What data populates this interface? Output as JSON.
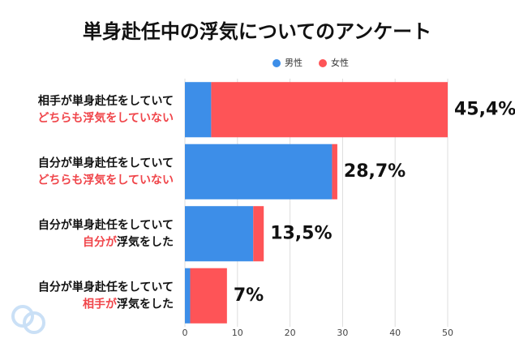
{
  "chart_data": {
    "type": "stacked-barh",
    "title": "単身赴任中の浮気についてのアンケート",
    "categories": [
      [
        [
          {
            "text": "相手が単身赴任をしていて",
            "color": "#111111"
          }
        ],
        [
          {
            "text": "どちらも浮気をしていない",
            "color": "#f0454a"
          }
        ]
      ],
      [
        [
          {
            "text": "自分が単身赴任をしていて",
            "color": "#111111"
          }
        ],
        [
          {
            "text": "どちらも浮気をしていない",
            "color": "#f0454a"
          }
        ]
      ],
      [
        [
          {
            "text": "自分が単身赴任をしていて",
            "color": "#111111"
          }
        ],
        [
          {
            "text": "自分が",
            "color": "#f0454a"
          },
          {
            "text": "浮気をした",
            "color": "#111111"
          }
        ]
      ],
      [
        [
          {
            "text": "自分が単身赴任をしていて",
            "color": "#111111"
          }
        ],
        [
          {
            "text": "相手が",
            "color": "#f0454a"
          },
          {
            "text": "浮気をした",
            "color": "#111111"
          }
        ]
      ]
    ],
    "series": [
      {
        "name": "男性",
        "color": "#3d8ee8",
        "values": [
          5,
          28,
          13,
          1
        ]
      },
      {
        "name": "女性",
        "color": "#fe5457",
        "values": [
          45,
          1,
          2,
          7
        ]
      }
    ],
    "annotations": [
      "45,4%",
      "28,7%",
      "13,5%",
      "7%"
    ],
    "xlim": [
      0,
      50
    ],
    "xticks": [
      0,
      10,
      20,
      30,
      40,
      50
    ],
    "grid": true
  }
}
